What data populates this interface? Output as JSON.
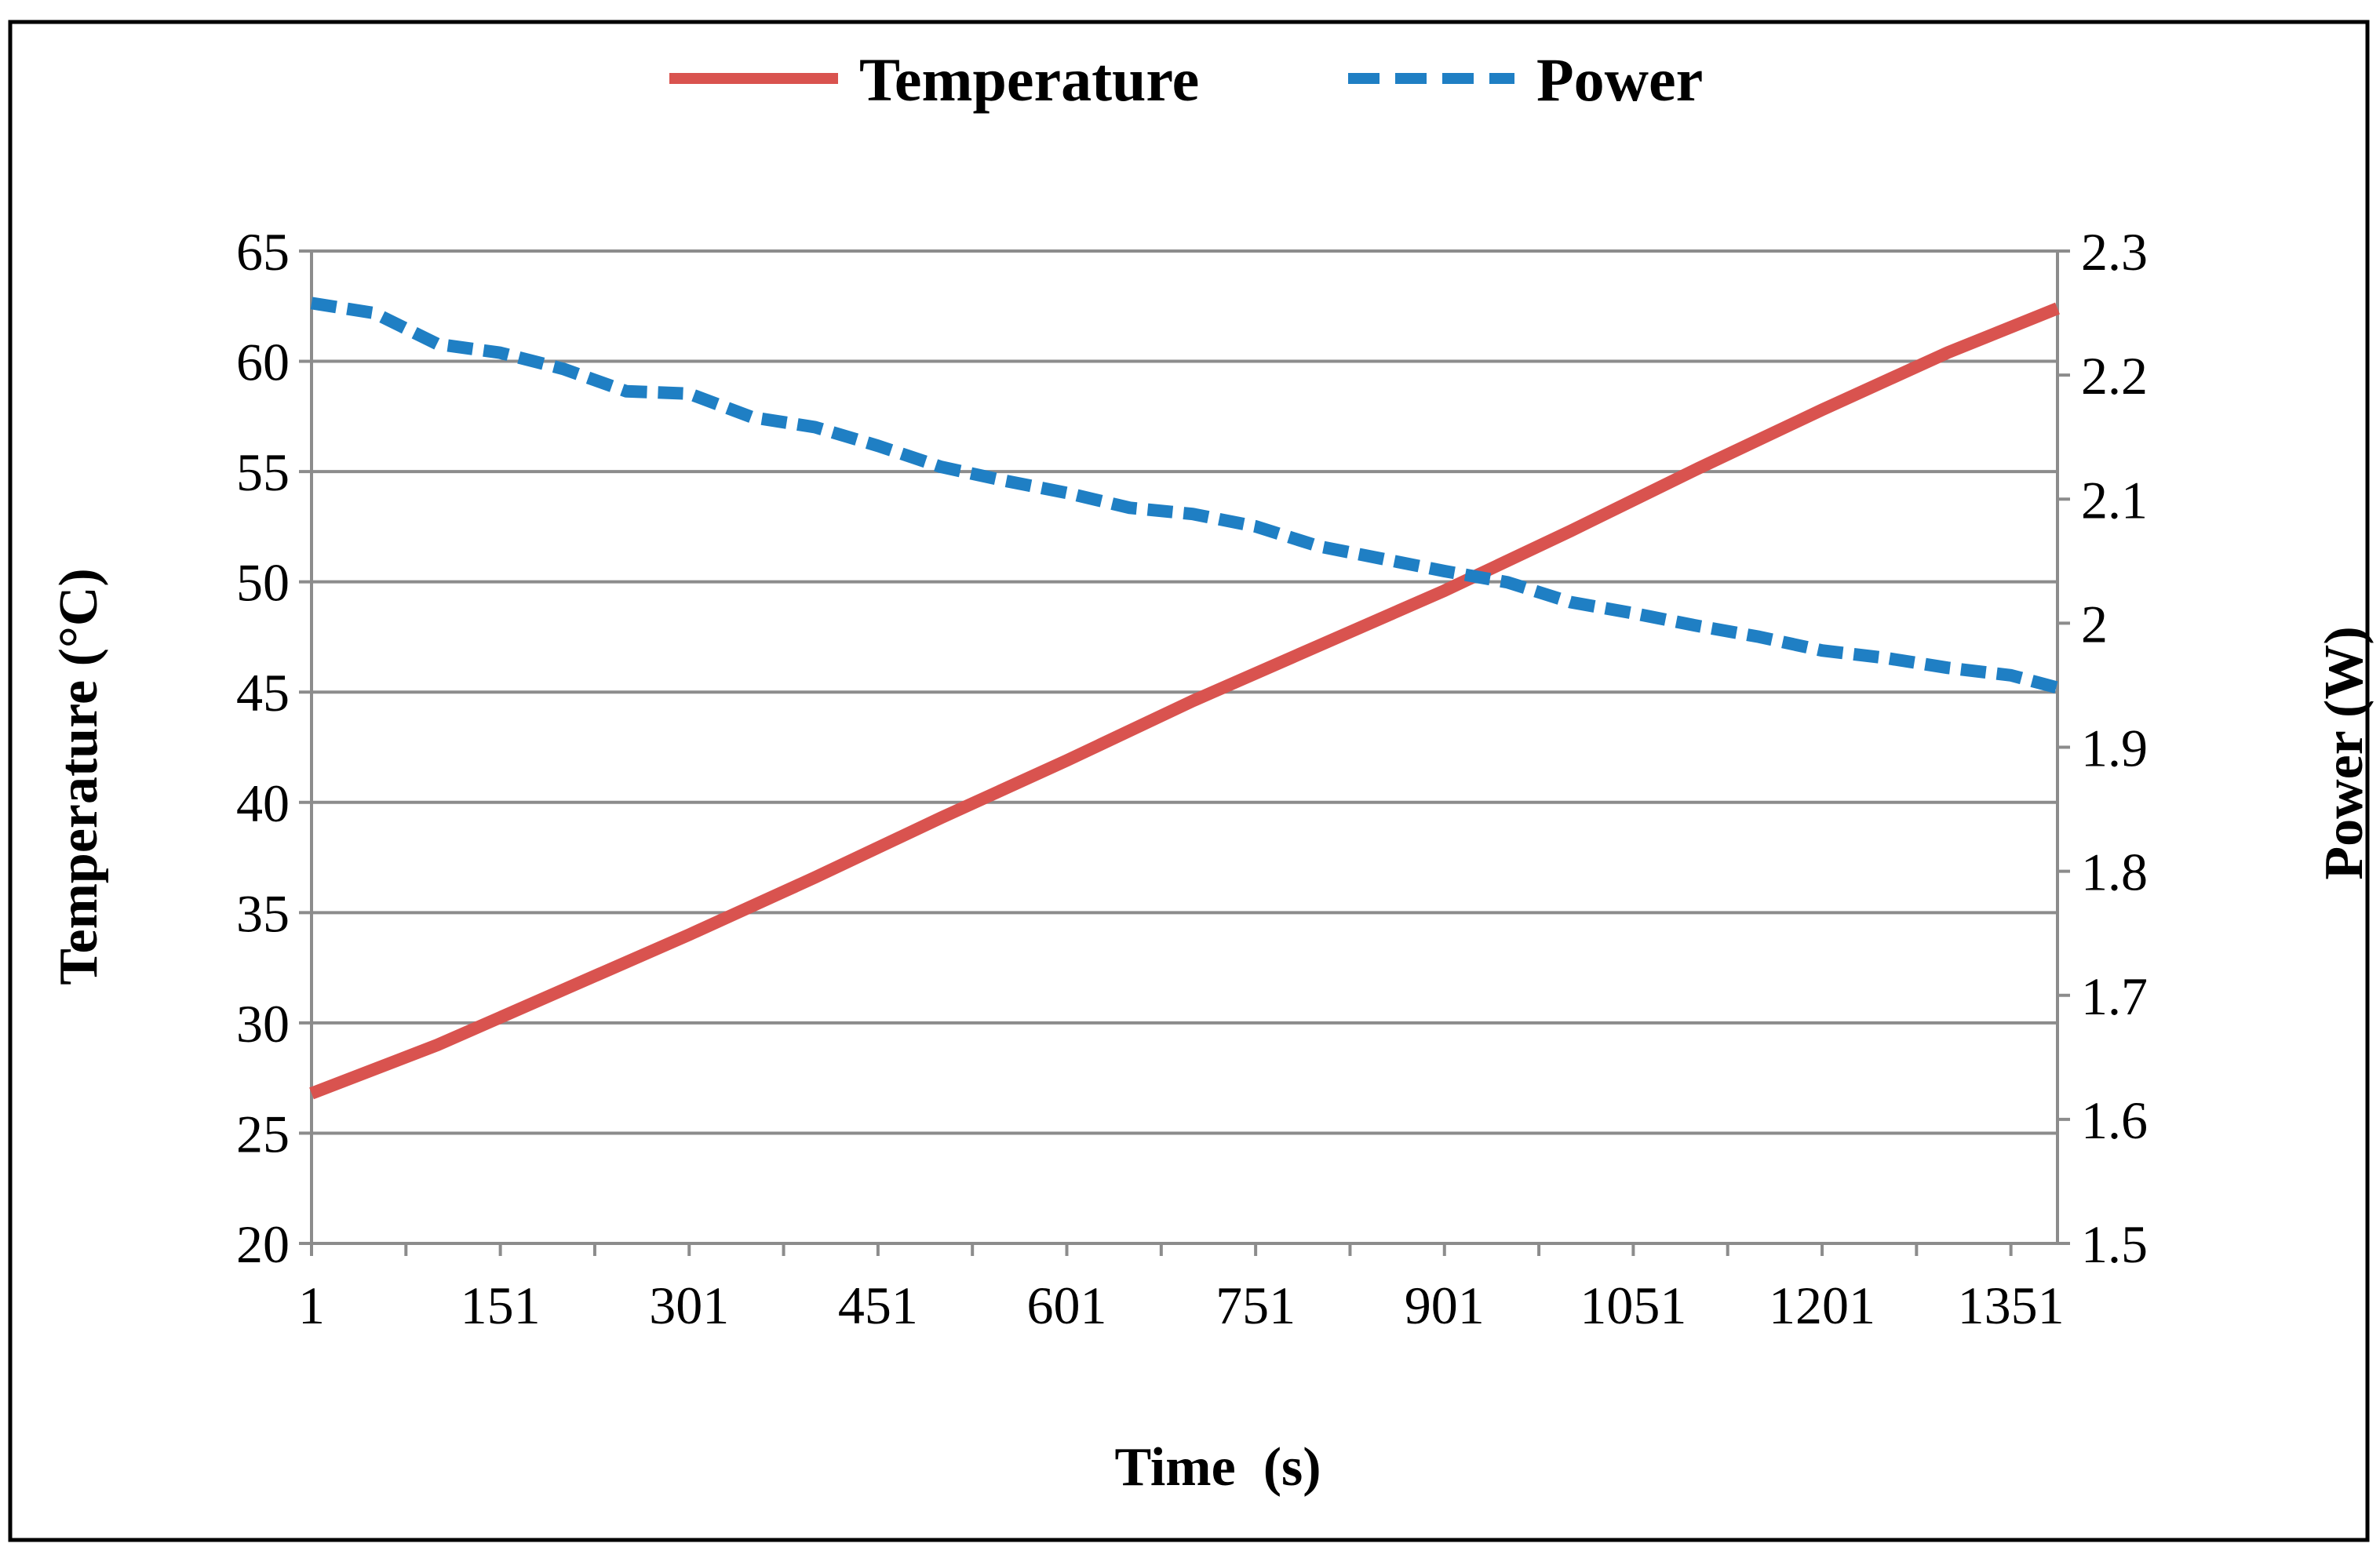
{
  "chart_data": {
    "type": "line",
    "title": "",
    "xlabel": "Time  (s)",
    "ylabel": "Temperature (°C)",
    "y2label": "Power (W)",
    "x_tick_labels": [
      "1",
      "151",
      "301",
      "451",
      "601",
      "751",
      "901",
      "1051",
      "1201",
      "1351"
    ],
    "x_ticks": [
      1,
      151,
      301,
      451,
      601,
      751,
      901,
      1051,
      1201,
      1351
    ],
    "xlim": [
      1,
      1388
    ],
    "ylim": [
      20,
      65
    ],
    "y_ticks": [
      20,
      25,
      30,
      35,
      40,
      45,
      50,
      55,
      60,
      65
    ],
    "y_tick_labels": [
      "20",
      "25",
      "30",
      "35",
      "40",
      "45",
      "50",
      "55",
      "60",
      "65"
    ],
    "y2lim": [
      1.5,
      2.3
    ],
    "y2_ticks": [
      1.5,
      1.6,
      1.7,
      1.8,
      1.9,
      2.0,
      2.1,
      2.2,
      2.3
    ],
    "y2_tick_labels": [
      "1.5",
      "1.6",
      "1.7",
      "1.8",
      "1.9",
      "2",
      "2.1",
      "2.2",
      "2.3"
    ],
    "grid": true,
    "legend_position": "top-center",
    "series": [
      {
        "name": "Temperature",
        "axis": "left",
        "style": "solid",
        "color": "#d9534f",
        "x": [
          1,
          101,
          201,
          301,
          401,
          501,
          601,
          701,
          801,
          901,
          1001,
          1101,
          1201,
          1301,
          1388
        ],
        "values": [
          26.8,
          29.0,
          31.5,
          34.0,
          36.6,
          39.3,
          41.9,
          44.6,
          47.1,
          49.6,
          52.3,
          55.1,
          57.8,
          60.4,
          62.4
        ]
      },
      {
        "name": "Power",
        "axis": "right",
        "style": "dashed",
        "color": "#1f7fc4",
        "x": [
          1,
          51,
          101,
          151,
          201,
          251,
          301,
          351,
          401,
          451,
          501,
          551,
          601,
          651,
          701,
          751,
          801,
          851,
          901,
          951,
          1001,
          1051,
          1101,
          1151,
          1201,
          1251,
          1301,
          1351,
          1388
        ],
        "values": [
          2.258,
          2.25,
          2.225,
          2.218,
          2.205,
          2.187,
          2.185,
          2.166,
          2.158,
          2.143,
          2.126,
          2.115,
          2.105,
          2.093,
          2.088,
          2.078,
          2.062,
          2.052,
          2.042,
          2.033,
          2.017,
          2.008,
          1.998,
          1.989,
          1.978,
          1.972,
          1.964,
          1.958,
          1.948
        ]
      }
    ]
  }
}
